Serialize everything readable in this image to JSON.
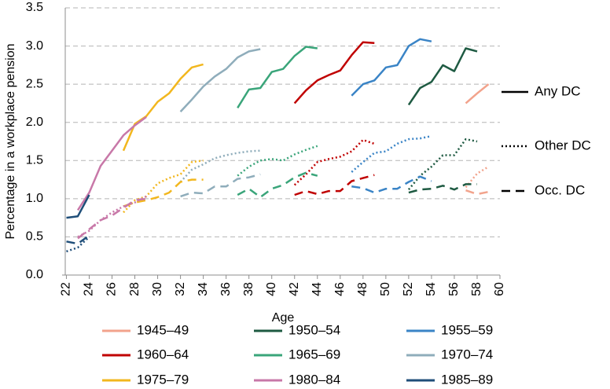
{
  "chart_data": {
    "type": "line",
    "xlabel": "Age",
    "ylabel": "Percentage in a workplace pension",
    "xlim": [
      21.9,
      60
    ],
    "xticks": [
      22,
      24,
      26,
      28,
      30,
      32,
      34,
      36,
      38,
      40,
      42,
      44,
      46,
      48,
      50,
      52,
      54,
      56,
      58,
      60
    ],
    "ylim": [
      0,
      3.5
    ],
    "yticks": [
      {
        "value": 0,
        "label": "0.0"
      },
      0.5,
      {
        "value": 1,
        "label": "1.0"
      },
      1.5,
      {
        "value": 2,
        "label": "2.0"
      },
      2.5,
      {
        "value": 3,
        "label": "3.0"
      },
      3.5
    ],
    "grid": true,
    "measures": [
      {
        "name": "Any DC",
        "dash": "none"
      },
      {
        "name": "Other DC",
        "dash": "2,3"
      },
      {
        "name": "Occ. DC",
        "dash": "11,7"
      }
    ],
    "series": [
      {
        "name": "1945–49",
        "color": "#f2a38c",
        "x": [
          57,
          58,
          59
        ],
        "values": [
          [
            2.25,
            2.38,
            2.5
          ],
          [
            1.15,
            1.33,
            1.42
          ],
          [
            1.11,
            1.06,
            1.09
          ]
        ]
      },
      {
        "name": "1950–54",
        "color": "#1e5a42",
        "x": [
          52,
          53,
          54,
          55,
          56,
          57,
          58
        ],
        "values": [
          [
            2.23,
            2.45,
            2.53,
            2.75,
            2.67,
            2.97,
            2.93
          ],
          [
            1.12,
            1.3,
            1.42,
            1.57,
            1.57,
            1.78,
            1.75
          ],
          [
            1.08,
            1.12,
            1.13,
            1.17,
            1.12,
            1.19,
            1.19
          ]
        ]
      },
      {
        "name": "1955–59",
        "color": "#3a84c6",
        "x": [
          47,
          48,
          49,
          50,
          51,
          52,
          53,
          54
        ],
        "values": [
          [
            2.35,
            2.5,
            2.55,
            2.72,
            2.75,
            3.0,
            3.09,
            3.06
          ],
          [
            1.35,
            1.48,
            1.6,
            1.62,
            1.72,
            1.78,
            1.79,
            1.82
          ],
          [
            1.16,
            1.14,
            1.08,
            1.13,
            1.13,
            1.22,
            1.29,
            1.23
          ]
        ]
      },
      {
        "name": "1960–64",
        "color": "#c00000",
        "x": [
          42,
          43,
          44,
          45,
          46,
          47,
          48,
          49
        ],
        "values": [
          [
            2.25,
            2.42,
            2.55,
            2.62,
            2.68,
            2.88,
            3.05,
            3.04
          ],
          [
            1.18,
            1.32,
            1.48,
            1.52,
            1.55,
            1.62,
            1.77,
            1.72
          ],
          [
            1.05,
            1.1,
            1.06,
            1.1,
            1.1,
            1.23,
            1.27,
            1.31
          ]
        ]
      },
      {
        "name": "1965–69",
        "color": "#3aa57a",
        "x": [
          37,
          38,
          39,
          40,
          41,
          42,
          43,
          44
        ],
        "values": [
          [
            2.19,
            2.43,
            2.45,
            2.66,
            2.7,
            2.87,
            2.99,
            2.97
          ],
          [
            1.3,
            1.42,
            1.5,
            1.52,
            1.5,
            1.58,
            1.64,
            1.69
          ],
          [
            1.05,
            1.13,
            1.02,
            1.13,
            1.18,
            1.28,
            1.34,
            1.3
          ]
        ]
      },
      {
        "name": "1970–74",
        "color": "#8fadbb",
        "x": [
          32,
          33,
          34,
          35,
          36,
          37,
          38,
          39
        ],
        "values": [
          [
            2.14,
            2.3,
            2.47,
            2.6,
            2.7,
            2.85,
            2.93,
            2.96
          ],
          [
            1.22,
            1.38,
            1.45,
            1.53,
            1.57,
            1.6,
            1.62,
            1.63
          ],
          [
            1.03,
            1.08,
            1.07,
            1.16,
            1.16,
            1.26,
            1.28,
            1.32
          ]
        ]
      },
      {
        "name": "1975–79",
        "color": "#f2b71e",
        "x": [
          27,
          28,
          29,
          30,
          31,
          32,
          33,
          34
        ],
        "values": [
          [
            1.63,
            1.98,
            2.08,
            2.27,
            2.38,
            2.57,
            2.72,
            2.76
          ],
          [
            0.82,
            0.98,
            1.03,
            1.2,
            1.27,
            1.32,
            1.48,
            1.5
          ],
          [
            0.9,
            0.95,
            0.98,
            1.02,
            1.08,
            1.22,
            1.25,
            1.25
          ]
        ]
      },
      {
        "name": "1980–84",
        "color": "#c878a8",
        "x": [
          23,
          24,
          25,
          26,
          27,
          28,
          29
        ],
        "values": [
          [
            0.85,
            1.08,
            1.43,
            1.63,
            1.83,
            1.96,
            2.07
          ],
          [
            0.5,
            0.58,
            0.72,
            0.82,
            0.9,
            0.95,
            1.03
          ],
          [
            0.48,
            0.6,
            0.72,
            0.78,
            0.88,
            0.98,
            1.0
          ]
        ]
      },
      {
        "name": "1985–89",
        "color": "#1f4e79",
        "x": [
          22,
          23,
          24
        ],
        "values": [
          [
            0.75,
            0.77,
            1.05
          ],
          [
            0.31,
            0.36,
            0.5
          ],
          [
            0.44,
            0.41,
            0.52
          ]
        ]
      }
    ]
  }
}
